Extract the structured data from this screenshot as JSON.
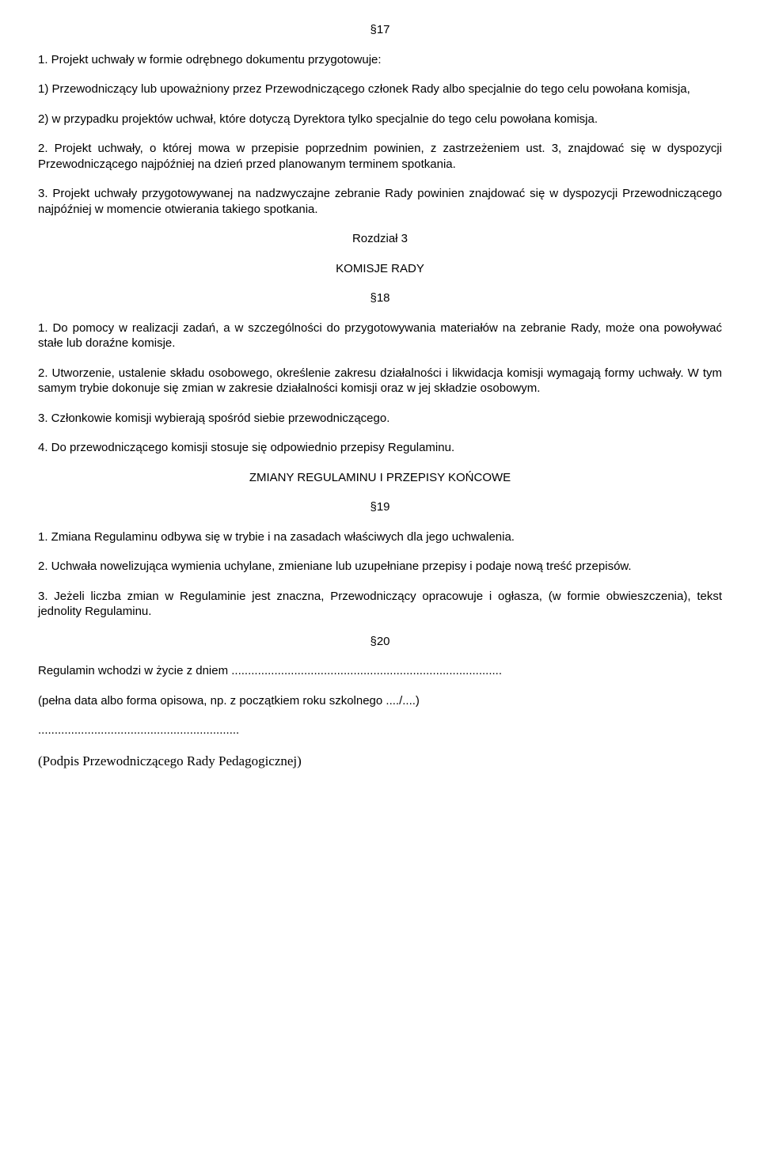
{
  "sections": {
    "s17": {
      "number": "§17",
      "p1": "1. Projekt uchwały w formie odrębnego dokumentu przygotowuje:",
      "p1_1": "1) Przewodniczący lub upoważniony przez Przewodniczącego członek Rady albo specjalnie do tego celu powołana komisja,",
      "p1_2": "2) w przypadku projektów uchwał, które dotyczą Dyrektora tylko specjalnie do tego celu powołana komisja.",
      "p2": "2. Projekt uchwały, o której mowa w przepisie poprzednim powinien, z zastrzeżeniem ust. 3, znajdować się w dyspozycji Przewodniczącego najpóźniej na dzień przed planowanym terminem spotkania.",
      "p3": "3. Projekt uchwały przygotowywanej na nadzwyczajne zebranie Rady powinien znajdować się w dyspozycji Przewodniczącego najpóźniej w momencie otwierania takiego spotkania."
    },
    "chapter3": {
      "title": "Rozdział 3",
      "heading": "KOMISJE RADY"
    },
    "s18": {
      "number": "§18",
      "p1": "1. Do pomocy w realizacji zadań, a w szczególności do przygotowywania materiałów na zebranie Rady, może ona powoływać stałe lub doraźne komisje.",
      "p2": "2. Utworzenie, ustalenie składu osobowego, określenie zakresu działalności i likwidacja komisji wymagają formy uchwały. W tym samym trybie dokonuje się zmian w zakresie działalności komisji oraz w jej składzie osobowym.",
      "p3": "3. Członkowie komisji wybierają spośród siebie przewodniczącego.",
      "p4": "4. Do przewodniczącego komisji stosuje się odpowiednio przepisy Regulaminu."
    },
    "finalHeading": "ZMIANY REGULAMINU I PRZEPISY KOŃCOWE",
    "s19": {
      "number": "§19",
      "p1": "1. Zmiana Regulaminu odbywa się w trybie i na zasadach właściwych dla jego uchwalenia.",
      "p2": "2. Uchwała nowelizująca wymienia uchylane, zmieniane lub uzupełniane przepisy i podaje nową treść przepisów.",
      "p3": "3. Jeżeli liczba zmian w Regulaminie jest znaczna, Przewodniczący opracowuje i ogłasza, (w formie obwieszczenia), tekst jednolity Regulaminu."
    },
    "s20": {
      "number": "§20",
      "p1": " Regulamin wchodzi w życie z dniem ..................................................................................",
      "p2": "(pełna data albo forma opisowa, np. z początkiem roku szkolnego ..../....)"
    },
    "dotted": ".............................................................",
    "signature": "(Podpis Przewodniczącego Rady Pedagogicznej)"
  },
  "styles": {
    "background": "#ffffff",
    "text_color": "#000000",
    "body_font_size": 15,
    "signature_font_size": 17
  }
}
